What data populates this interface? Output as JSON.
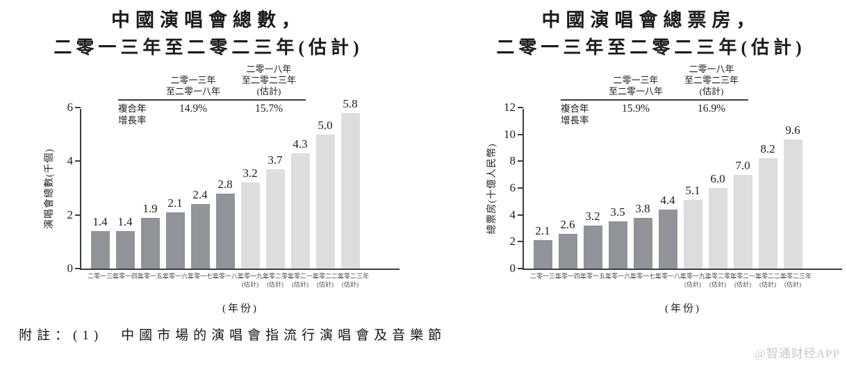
{
  "page": {
    "note": "附註：(1)　中國市場的演唱會指流行演唱會及音樂節",
    "watermark": "@智通财经APP"
  },
  "chart_data": [
    {
      "type": "bar",
      "title_line1": "中國演唱會總數，",
      "title_line2": "二零一三年至二零二三年(估計)",
      "ylabel": "演唱會總數(千個)",
      "xlabel": "(年份)",
      "ymax": 6,
      "ylim": [
        0,
        6
      ],
      "yticks": [
        0,
        2,
        4,
        6
      ],
      "grid": false,
      "categories": [
        "二零一三年",
        "二零一四年",
        "二零一五年",
        "二零一六年",
        "二零一七年",
        "二零一八年",
        "二零一九年",
        "二零二零年",
        "二零二一年",
        "二零二二年",
        "二零二三年"
      ],
      "category_subs": [
        "",
        "",
        "",
        "",
        "",
        "",
        "(估計)",
        "(估計)",
        "(估計)",
        "(估計)",
        "(估計)"
      ],
      "values": [
        1.4,
        1.4,
        1.9,
        2.1,
        2.4,
        2.8,
        3.2,
        3.7,
        4.3,
        5.0,
        5.8
      ],
      "estimated_from_index": 6,
      "bar_color_actual": "#909498",
      "bar_color_estimate": "#dcddde",
      "cagr": {
        "row_label_lines": [
          "複合年",
          "增長率"
        ],
        "col1_header_lines": [
          "二零一三年",
          "至二零一八年"
        ],
        "col2_header_lines": [
          "二零一八年",
          "至二零二三年",
          "(估計)"
        ],
        "col1_value": "14.9%",
        "col2_value": "15.7%"
      }
    },
    {
      "type": "bar",
      "title_line1": "中國演唱會總票房，",
      "title_line2": "二零一三年至二零二三年(估計)",
      "ylabel": "總票房(十億人民幣)",
      "xlabel": "(年份)",
      "ymax": 12,
      "ylim": [
        0,
        12
      ],
      "yticks": [
        0,
        2,
        4,
        6,
        8,
        10,
        12
      ],
      "grid": false,
      "categories": [
        "二零一三年",
        "二零一四年",
        "二零一五年",
        "二零一六年",
        "二零一七年",
        "二零一八年",
        "二零一九年",
        "二零二零年",
        "二零二一年",
        "二零二二年",
        "二零二三年"
      ],
      "category_subs": [
        "",
        "",
        "",
        "",
        "",
        "",
        "(估計)",
        "(估計)",
        "(估計)",
        "(估計)",
        "(估計)"
      ],
      "values": [
        2.1,
        2.6,
        3.2,
        3.5,
        3.8,
        4.4,
        5.1,
        6.0,
        7.0,
        8.2,
        9.6
      ],
      "estimated_from_index": 6,
      "bar_color_actual": "#909498",
      "bar_color_estimate": "#dcddde",
      "cagr": {
        "row_label_lines": [
          "複合年",
          "增長率"
        ],
        "col1_header_lines": [
          "二零一三年",
          "至二零一八年"
        ],
        "col2_header_lines": [
          "二零一八年",
          "至二零二三年",
          "(估計)"
        ],
        "col1_value": "15.9%",
        "col2_value": "16.9%"
      }
    }
  ]
}
